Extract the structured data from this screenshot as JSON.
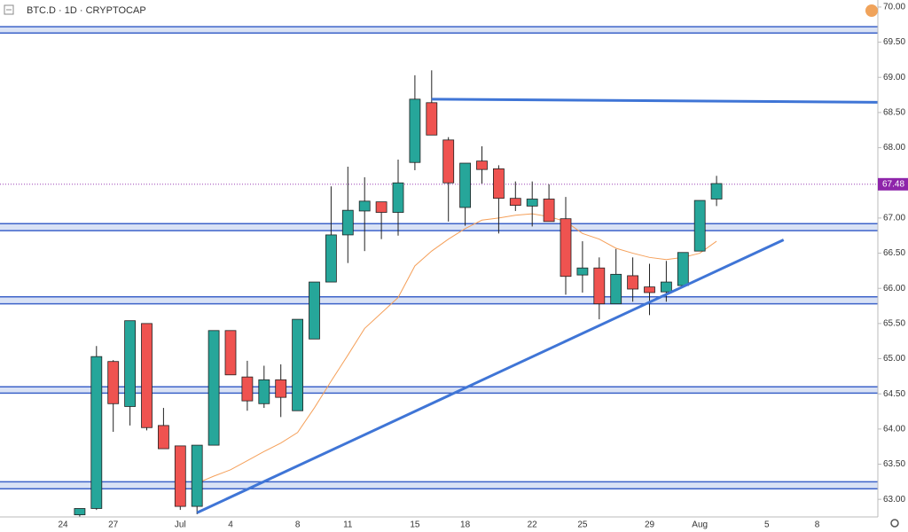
{
  "chart_data": {
    "type": "candlestick",
    "title": "BTC.D · 1D · CRYPTOCAP",
    "categories": [
      null,
      null,
      null,
      "24",
      null,
      null,
      "27",
      null,
      null,
      null,
      "Jul",
      null,
      null,
      "4",
      null,
      null,
      null,
      "8",
      null,
      null,
      "11",
      null,
      null,
      null,
      "15",
      null,
      null,
      "18",
      null,
      null,
      null,
      "22",
      null,
      null,
      "25",
      null,
      null,
      null,
      "29",
      null,
      null,
      "Aug",
      null,
      null,
      null,
      "5",
      null,
      null,
      "8",
      null
    ],
    "open": [
      null,
      null,
      null,
      null,
      62.78,
      62.87,
      64.96,
      64.32,
      65.5,
      64.05,
      63.76,
      62.9,
      63.77,
      65.4,
      64.74,
      64.36,
      64.7,
      64.26,
      65.28,
      66.09,
      66.76,
      67.1,
      67.23,
      67.08,
      67.79,
      68.64,
      68.11,
      67.15,
      67.81,
      67.7,
      67.28,
      67.17,
      67.27,
      66.99,
      66.19,
      66.29,
      65.78,
      66.18,
      66.02,
      65.95,
      66.04,
      66.53,
      67.27,
      null,
      null,
      null,
      null,
      null,
      null,
      null
    ],
    "high": [
      null,
      null,
      null,
      null,
      62.87,
      65.18,
      64.98,
      65.54,
      65.5,
      64.3,
      63.76,
      63.77,
      65.4,
      65.4,
      64.97,
      64.9,
      64.92,
      65.56,
      66.09,
      67.45,
      67.73,
      67.58,
      67.23,
      67.83,
      69.03,
      69.1,
      68.15,
      67.78,
      68.02,
      67.75,
      67.52,
      67.52,
      67.48,
      67.3,
      66.67,
      66.44,
      66.56,
      66.44,
      66.35,
      66.39,
      66.51,
      67.25,
      67.6,
      null,
      null,
      null,
      null,
      null,
      null,
      null
    ],
    "low": [
      null,
      null,
      null,
      null,
      62.7,
      62.85,
      63.96,
      64.05,
      63.98,
      63.72,
      62.85,
      62.79,
      63.77,
      64.77,
      64.26,
      64.3,
      64.17,
      64.26,
      65.28,
      66.09,
      66.36,
      66.53,
      66.7,
      66.75,
      67.68,
      68.18,
      66.95,
      66.89,
      67.49,
      66.78,
      67.1,
      66.88,
      66.95,
      65.91,
      65.94,
      65.56,
      65.78,
      65.81,
      65.62,
      65.81,
      66.04,
      66.53,
      67.17,
      null,
      null,
      null,
      null,
      null,
      null,
      null
    ],
    "close": [
      null,
      null,
      null,
      null,
      62.87,
      65.03,
      64.36,
      65.54,
      64.02,
      63.72,
      62.9,
      63.77,
      65.4,
      64.77,
      64.4,
      64.7,
      64.45,
      65.56,
      66.09,
      66.76,
      67.11,
      67.24,
      67.08,
      67.5,
      68.69,
      68.18,
      67.5,
      67.78,
      67.69,
      67.28,
      67.18,
      67.27,
      66.95,
      66.17,
      66.29,
      65.78,
      66.2,
      65.99,
      65.94,
      66.09,
      66.51,
      67.25,
      67.49,
      null,
      null,
      null,
      null,
      null,
      null,
      null
    ],
    "up_color": "#26a69a",
    "down_color": "#ef5350",
    "ylim": [
      62.75,
      70.1
    ],
    "yticks": [
      {
        "value": 63,
        "label": "63.00"
      },
      {
        "value": 63.5,
        "label": "63.50"
      },
      {
        "value": 64,
        "label": "64.00"
      },
      {
        "value": 64.5,
        "label": "64.50"
      },
      {
        "value": 65,
        "label": "65.00"
      },
      {
        "value": 65.5,
        "label": "65.50"
      },
      {
        "value": 66,
        "label": "66.00"
      },
      {
        "value": 66.5,
        "label": "66.50"
      },
      {
        "value": 67,
        "label": "67.00"
      },
      {
        "value": 67.5,
        "label": "67.50"
      },
      {
        "value": 68,
        "label": "68.00"
      },
      {
        "value": 68.5,
        "label": "68.50"
      },
      {
        "value": 69,
        "label": "69.00"
      },
      {
        "value": 69.5,
        "label": "69.50"
      },
      {
        "value": 70,
        "label": "70.00"
      }
    ],
    "moving_average": {
      "color": "#f5a05a",
      "values": [
        null,
        null,
        null,
        null,
        null,
        null,
        null,
        null,
        null,
        null,
        null,
        63.23,
        63.33,
        63.42,
        63.55,
        63.68,
        63.8,
        63.95,
        64.3,
        64.68,
        65.05,
        65.43,
        65.65,
        65.87,
        66.32,
        66.53,
        66.7,
        66.85,
        66.97,
        67.0,
        67.04,
        67.06,
        67.02,
        66.95,
        66.78,
        66.7,
        66.57,
        66.5,
        66.44,
        66.41,
        66.44,
        66.5,
        66.67,
        null,
        null,
        null,
        null,
        null,
        null,
        null
      ]
    },
    "zones": [
      [
        69.63,
        69.72
      ],
      [
        66.82,
        66.92
      ],
      [
        65.78,
        65.88
      ],
      [
        64.51,
        64.6
      ],
      [
        63.15,
        63.25
      ]
    ],
    "zone_color": "#3d63c9",
    "trendlines": [
      {
        "x": [
          25,
          49
        ],
        "y": [
          68.69,
          68.65
        ],
        "extend": "right"
      },
      {
        "x": [
          11,
          46
        ],
        "y": [
          62.81,
          66.69
        ],
        "extend": "none"
      }
    ],
    "trendline_color": "#3f75d6",
    "last_price": 67.48,
    "last_price_color": "#8e24aa"
  }
}
